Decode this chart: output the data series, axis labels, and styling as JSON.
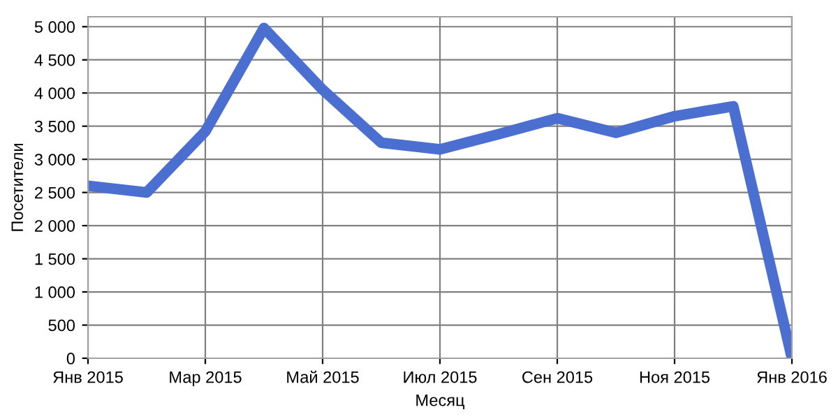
{
  "chart_data": {
    "type": "line",
    "xlabel": "Месяц",
    "ylabel": "Посетители",
    "categories": [
      "Янв 2015",
      null,
      "Мар 2015",
      null,
      "Май 2015",
      null,
      "Июл 2015",
      null,
      "Сен 2015",
      null,
      "Ноя 2015",
      null,
      "Янв 2016"
    ],
    "series": [
      {
        "color": "#4a6fd0",
        "values": [
          2600,
          2500,
          3420,
          4980,
          4050,
          3250,
          3150,
          3380,
          3620,
          3400,
          3650,
          3800,
          0
        ]
      }
    ],
    "ylim": [
      0,
      5150
    ],
    "yticks": [
      0,
      500,
      {
        "value": 1000,
        "label": "1 000"
      },
      {
        "value": 1500,
        "label": "1 500"
      },
      {
        "value": 2000,
        "label": "2 000"
      },
      {
        "value": 2500,
        "label": "2 500"
      },
      {
        "value": 3000,
        "label": "3 000"
      },
      {
        "value": 3500,
        "label": "3 500"
      },
      {
        "value": 4000,
        "label": "4 000"
      },
      {
        "value": 4500,
        "label": "4 500"
      },
      {
        "value": 5000,
        "label": "5 000"
      }
    ],
    "grid": true,
    "legend": false,
    "marker": "none",
    "line_style": "solid"
  }
}
